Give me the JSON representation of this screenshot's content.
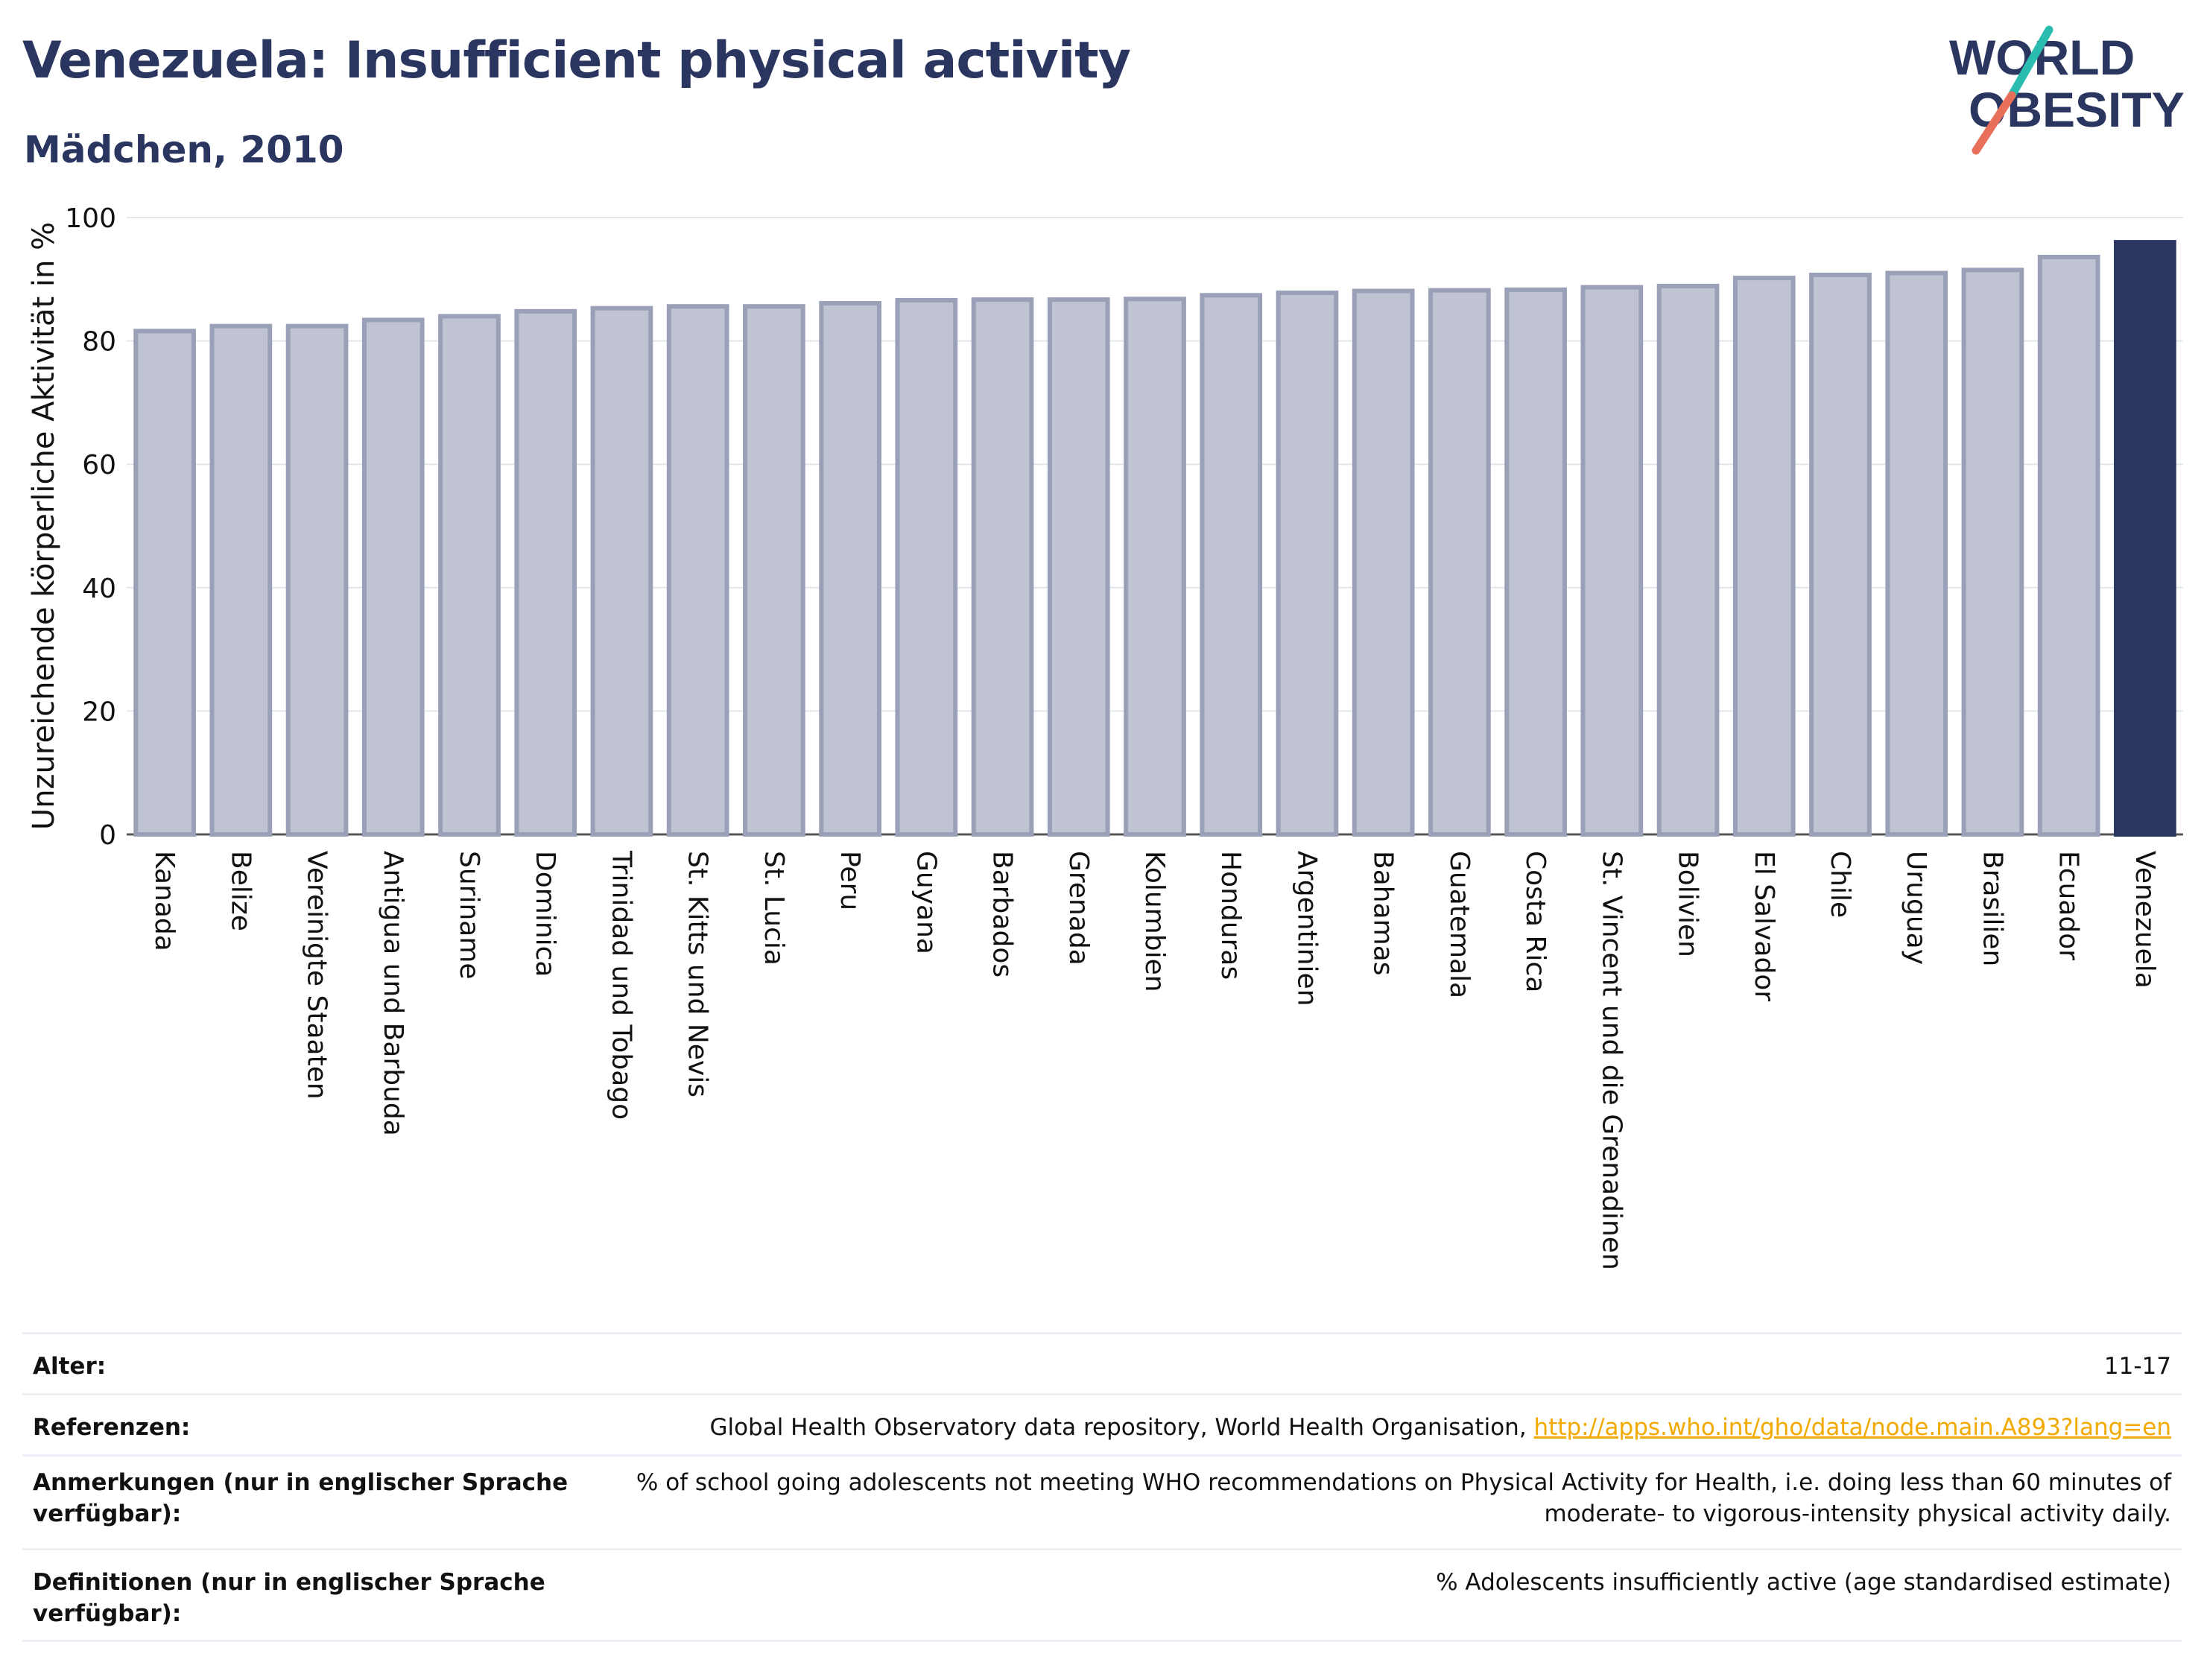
{
  "header": {
    "title": "Venezuela: Insufficient physical activity",
    "subtitle": "Mädchen, 2010"
  },
  "logo": {
    "line1": "WORLD",
    "line2": "OBESITY",
    "colors": {
      "text": "#2a3560",
      "slash_top": "#2bbcb0",
      "slash_bottom": "#e8705a"
    }
  },
  "chart_data": {
    "type": "bar",
    "title": "Venezuela: Insufficient physical activity",
    "subtitle": "Mädchen, 2010",
    "ylabel": "Unzureichende körperliche Aktivität in %",
    "xlabel": "",
    "ylim": [
      0,
      100
    ],
    "yticks": [
      0,
      20,
      40,
      60,
      80,
      100
    ],
    "grid": true,
    "highlight": "Venezuela",
    "colors": {
      "bar": "#bfc3d2",
      "bar_border": "#9aa0b8",
      "highlight": "#2a3560",
      "grid": "#e4e6ee"
    },
    "categories": [
      "Kanada",
      "Belize",
      "Vereinigte Staaten",
      "Antigua und Barbuda",
      "Suriname",
      "Dominica",
      "Trinidad und Tobago",
      "St. Kitts und Nevis",
      "St. Lucia",
      "Peru",
      "Guyana",
      "Barbados",
      "Grenada",
      "Kolumbien",
      "Honduras",
      "Argentinien",
      "Bahamas",
      "Guatemala",
      "Costa Rica",
      "St. Vincent und die Grenadinen",
      "Bolivien",
      "El Salvador",
      "Chile",
      "Uruguay",
      "Brasilien",
      "Ecuador",
      "Venezuela"
    ],
    "values": [
      81.6,
      82.4,
      82.4,
      83.4,
      84.0,
      84.8,
      85.3,
      85.6,
      85.6,
      86.1,
      86.6,
      86.7,
      86.7,
      86.8,
      87.4,
      87.8,
      88.1,
      88.2,
      88.3,
      88.7,
      88.9,
      90.2,
      90.7,
      91.0,
      91.5,
      93.6,
      96.0
    ]
  },
  "info_table": [
    {
      "label": "Alter:",
      "value": "11-17"
    },
    {
      "label": "Referenzen:",
      "value": "Global Health Observatory data repository, World Health Organisation, ",
      "link": "http://apps.who.int/gho/data/node.main.A893?lang=en"
    },
    {
      "label": "Anmerkungen (nur in englischer Sprache verfügbar):",
      "value": "% of school going adolescents not meeting WHO recommendations on Physical Activity for Health, i.e. doing less than 60 minutes of moderate- to vigorous-intensity physical activity daily."
    },
    {
      "label": "Definitionen (nur in englischer Sprache verfügbar):",
      "value": "% Adolescents insufficiently active (age standardised estimate)"
    }
  ]
}
